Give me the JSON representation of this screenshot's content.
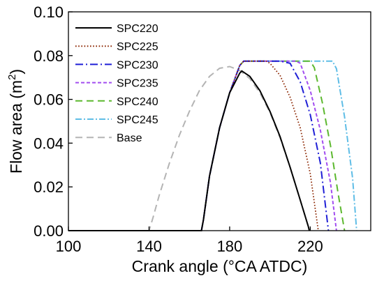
{
  "chart_data": {
    "type": "line",
    "xlabel": "Crank angle (°CA ATDC)",
    "ylabel_main": "Flow area (m",
    "ylabel_sup": "2",
    "ylabel_close": ")",
    "xlim": [
      100,
      250
    ],
    "ylim": [
      0.0,
      0.1
    ],
    "xticks": [
      "100",
      "140",
      "180",
      "220"
    ],
    "xtick_values": [
      100,
      140,
      180,
      220
    ],
    "yticks": [
      "0.00",
      "0.02",
      "0.04",
      "0.06",
      "0.08",
      "0.10"
    ],
    "ytick_values": [
      0.0,
      0.02,
      0.04,
      0.06,
      0.08,
      0.1
    ],
    "legend_position": "top-left",
    "grid": false,
    "series": [
      {
        "name": "SPC220",
        "color": "#000000",
        "style": "solid",
        "x": [
          100,
          166,
          167,
          170,
          175,
          180,
          185,
          186,
          190,
          195,
          200,
          205,
          210,
          215,
          219,
          219.5
        ],
        "y": [
          0,
          0,
          0.005,
          0.025,
          0.047,
          0.063,
          0.072,
          0.073,
          0.0705,
          0.064,
          0.0545,
          0.043,
          0.029,
          0.014,
          0.002,
          0
        ]
      },
      {
        "name": "SPC225",
        "color": "#8b2500",
        "style": "dot",
        "x": [
          100,
          166,
          167,
          170,
          175,
          180,
          185,
          187,
          198,
          200,
          205,
          210,
          215,
          220,
          224
        ],
        "y": [
          0,
          0,
          0.005,
          0.025,
          0.047,
          0.063,
          0.0755,
          0.0775,
          0.0775,
          0.0765,
          0.071,
          0.061,
          0.047,
          0.026,
          0
        ]
      },
      {
        "name": "SPC230",
        "color": "#1f1fd6",
        "style": "dashdot",
        "x": [
          100,
          166,
          167,
          170,
          175,
          180,
          185,
          187,
          205,
          210,
          215,
          220,
          225,
          229
        ],
        "y": [
          0,
          0,
          0.005,
          0.025,
          0.047,
          0.063,
          0.0755,
          0.0775,
          0.0775,
          0.0765,
          0.068,
          0.053,
          0.031,
          0
        ]
      },
      {
        "name": "SPC235",
        "color": "#a24df0",
        "style": "shortdash",
        "x": [
          100,
          166,
          167,
          170,
          175,
          180,
          185,
          187,
          213,
          215,
          220,
          225,
          230,
          233
        ],
        "y": [
          0,
          0,
          0.005,
          0.025,
          0.047,
          0.063,
          0.0755,
          0.0775,
          0.0775,
          0.0765,
          0.064,
          0.046,
          0.022,
          0
        ]
      },
      {
        "name": "SPC240",
        "color": "#5cb82e",
        "style": "longdash",
        "x": [
          100,
          166,
          167,
          170,
          175,
          180,
          185,
          187,
          220,
          222,
          226,
          230,
          234,
          237
        ],
        "y": [
          0,
          0,
          0.005,
          0.025,
          0.047,
          0.063,
          0.0755,
          0.0775,
          0.0775,
          0.0745,
          0.0585,
          0.039,
          0.016,
          0
        ]
      },
      {
        "name": "SPC245",
        "color": "#5fbde6",
        "style": "dashdotlong",
        "x": [
          100,
          166,
          167,
          170,
          175,
          180,
          185,
          187,
          231,
          233,
          237,
          241,
          243
        ],
        "y": [
          0,
          0,
          0.005,
          0.025,
          0.047,
          0.063,
          0.0755,
          0.0775,
          0.0775,
          0.074,
          0.052,
          0.024,
          0
        ]
      },
      {
        "name": "Base",
        "color": "#b4b4b4",
        "style": "longdash",
        "x": [
          100,
          140,
          142,
          145,
          150,
          155,
          160,
          165,
          170,
          175,
          180,
          185,
          190,
          195,
          200,
          205,
          210,
          215,
          219,
          219.5
        ],
        "y": [
          0,
          0,
          0.006,
          0.016,
          0.0305,
          0.0435,
          0.0545,
          0.064,
          0.0705,
          0.0742,
          0.075,
          0.0732,
          0.0695,
          0.063,
          0.054,
          0.0425,
          0.029,
          0.014,
          0.002,
          0
        ]
      }
    ]
  }
}
